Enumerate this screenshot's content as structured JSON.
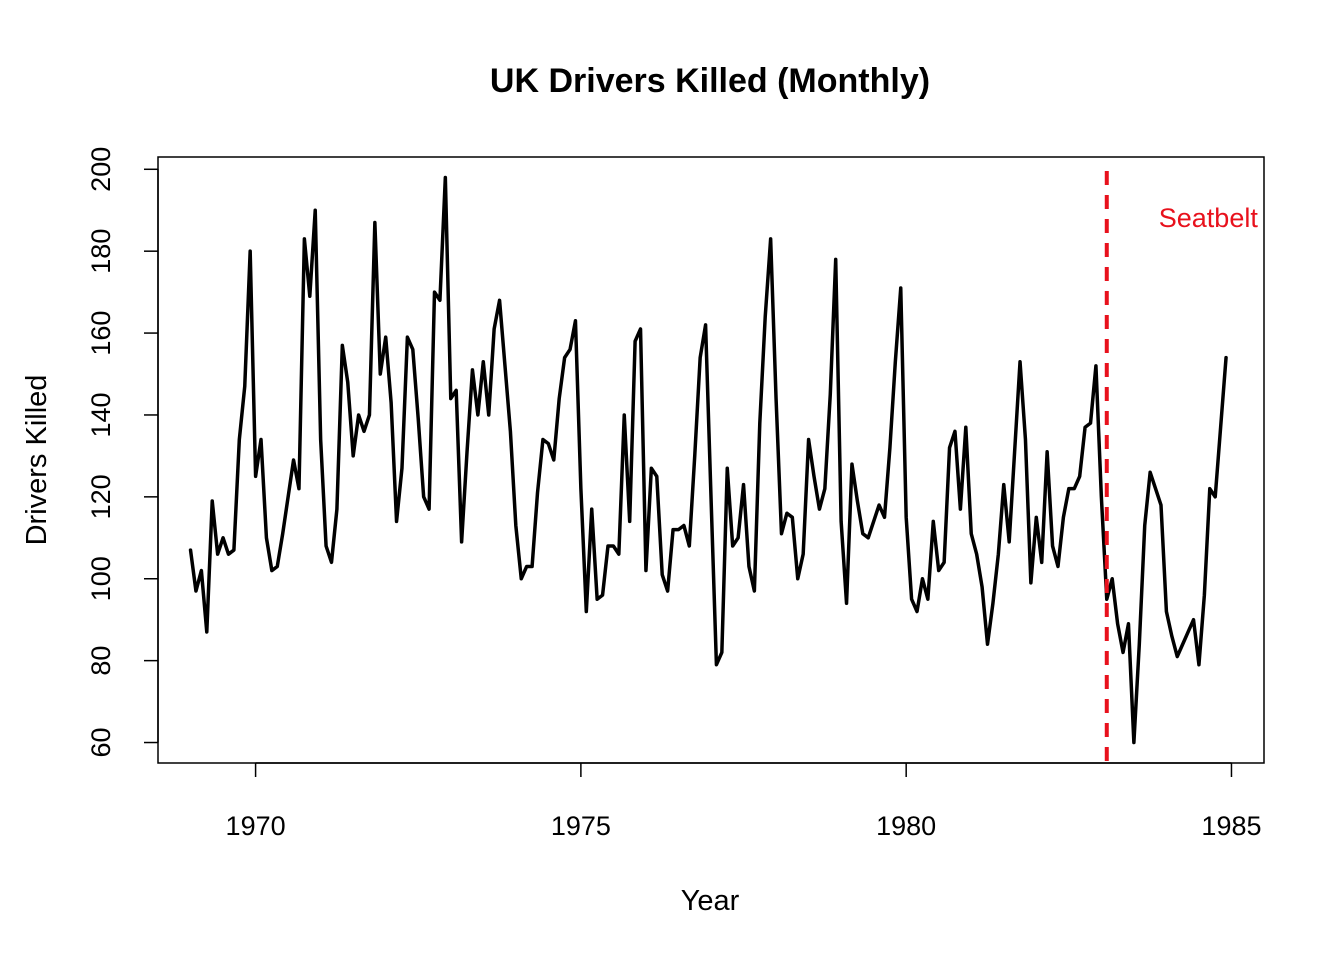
{
  "chart_data": {
    "type": "line",
    "title": "UK Drivers Killed (Monthly)",
    "xlabel": "Year",
    "ylabel": "Drivers Killed",
    "xlim": [
      1968.5,
      1985.5
    ],
    "ylim": [
      55,
      203
    ],
    "x_ticks": [
      1970,
      1975,
      1980,
      1985
    ],
    "y_ticks": [
      60,
      80,
      100,
      120,
      140,
      160,
      180,
      200
    ],
    "x_start": 1969.0,
    "x_step": 0.08333333,
    "grid": false,
    "line_color": "#000000",
    "series": [
      {
        "values": [
          107,
          97,
          102,
          87,
          119,
          106,
          110,
          106,
          107,
          134,
          147,
          180,
          125,
          134,
          110,
          102,
          103,
          111,
          120,
          129,
          122,
          183,
          169,
          190,
          134,
          108,
          104,
          117,
          157,
          148,
          130,
          140,
          136,
          140,
          187,
          150,
          159,
          143,
          114,
          127,
          159,
          156,
          139,
          120,
          117,
          170,
          168,
          198,
          144,
          146,
          109,
          131,
          151,
          140,
          153,
          140,
          161,
          168,
          152,
          136,
          113,
          100,
          103,
          103,
          121,
          134,
          133,
          129,
          144,
          154,
          156,
          163,
          122,
          92,
          117,
          95,
          96,
          108,
          108,
          106,
          140,
          114,
          158,
          161,
          102,
          127,
          125,
          101,
          97,
          112,
          112,
          113,
          108,
          130,
          154,
          162,
          120,
          79,
          82,
          127,
          108,
          110,
          123,
          103,
          97,
          138,
          164,
          183,
          144,
          111,
          116,
          115,
          100,
          106,
          134,
          125,
          117,
          122,
          145,
          178,
          114,
          94,
          128,
          119,
          111,
          110,
          114,
          118,
          115,
          132,
          153,
          171,
          115,
          95,
          92,
          100,
          95,
          114,
          102,
          104,
          132,
          136,
          117,
          137,
          111,
          106,
          98,
          84,
          94,
          106,
          123,
          109,
          131,
          153,
          134,
          99,
          115,
          104,
          131,
          108,
          103,
          115,
          122,
          122,
          125,
          137,
          138,
          152,
          120,
          95,
          100,
          89,
          82,
          89,
          60,
          84,
          113,
          126,
          122,
          118,
          92,
          86,
          81,
          84,
          87,
          90,
          79,
          96,
          122,
          120,
          137,
          154
        ]
      }
    ],
    "event": {
      "x": 1983.0833,
      "label": "Seatbelt",
      "color": "#e8111c"
    }
  }
}
